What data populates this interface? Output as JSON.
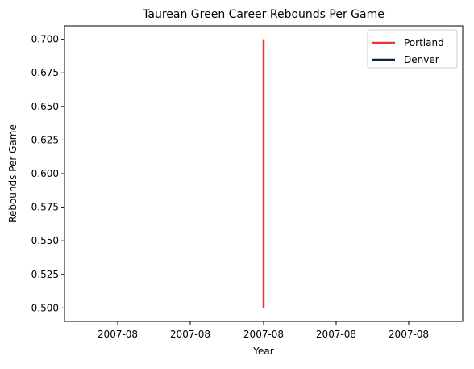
{
  "chart_data": {
    "type": "line",
    "title": "Taurean Green Career Rebounds Per Game",
    "xlabel": "Year",
    "ylabel": "Rebounds Per Game",
    "x_tick_labels": [
      "2007-08",
      "2007-08",
      "2007-08",
      "2007-08",
      "2007-08"
    ],
    "y_ticks": [
      0.5,
      0.525,
      0.55,
      0.575,
      0.6,
      0.625,
      0.65,
      0.675,
      0.7
    ],
    "y_tick_labels": [
      "0.500",
      "0.525",
      "0.550",
      "0.575",
      "0.600",
      "0.625",
      "0.650",
      "0.675",
      "0.700"
    ],
    "ylim": [
      0.49,
      0.71
    ],
    "grid": false,
    "legend_position": "top-right",
    "series": [
      {
        "name": "Portland",
        "color": "#E03A3E",
        "points": [
          {
            "x": "2007-08",
            "y": 0.5
          },
          {
            "x": "2007-08",
            "y": 0.7
          }
        ]
      },
      {
        "name": "Denver",
        "color": "#0E2240",
        "points": []
      }
    ]
  }
}
